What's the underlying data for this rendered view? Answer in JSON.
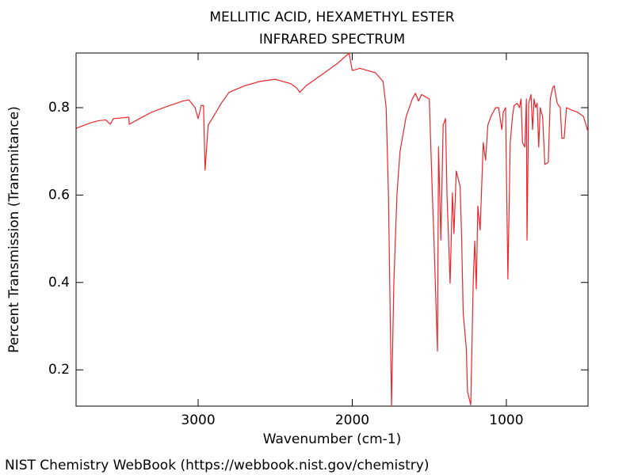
{
  "chart_data": {
    "type": "line",
    "title": "MELLITIC ACID, HEXAMETHYL ESTER",
    "subtitle": "INFRARED SPECTRUM",
    "x_label": "Wavenumber (cm-1)",
    "y_label": "Percent Transmission (Transmitance)",
    "color": "#e8262b",
    "xlim": [
      3792,
      470
    ],
    "xticks": [
      3000,
      2000,
      1000
    ],
    "ylim": [
      0.117,
      0.925
    ],
    "yticks": [
      0.2,
      0.4,
      0.6,
      0.8
    ],
    "x": [
      3790,
      3700,
      3650,
      3600,
      3570,
      3550,
      3450,
      3447,
      3380,
      3300,
      3200,
      3100,
      3060,
      3020,
      3000,
      2980,
      2965,
      2955,
      2935,
      2900,
      2850,
      2800,
      2700,
      2600,
      2500,
      2400,
      2360,
      2340,
      2300,
      2200,
      2100,
      2020,
      2000,
      1950,
      1900,
      1850,
      1800,
      1780,
      1765,
      1745,
      1730,
      1710,
      1690,
      1650,
      1610,
      1590,
      1570,
      1550,
      1500,
      1480,
      1470,
      1447,
      1440,
      1425,
      1410,
      1395,
      1385,
      1365,
      1350,
      1340,
      1325,
      1300,
      1290,
      1280,
      1260,
      1252,
      1231,
      1215,
      1205,
      1195,
      1185,
      1170,
      1150,
      1135,
      1120,
      1100,
      1070,
      1050,
      1030,
      1020,
      1005,
      990,
      975,
      960,
      950,
      930,
      915,
      905,
      895,
      880,
      870,
      866,
      855,
      840,
      830,
      820,
      810,
      800,
      790,
      780,
      765,
      750,
      728,
      715,
      700,
      690,
      670,
      650,
      640,
      625,
      610,
      580,
      540,
      500,
      470
    ],
    "values": [
      0.753,
      0.765,
      0.77,
      0.772,
      0.762,
      0.775,
      0.778,
      0.762,
      0.775,
      0.79,
      0.803,
      0.815,
      0.818,
      0.8,
      0.775,
      0.805,
      0.805,
      0.657,
      0.76,
      0.78,
      0.81,
      0.835,
      0.85,
      0.86,
      0.865,
      0.855,
      0.845,
      0.835,
      0.85,
      0.875,
      0.9,
      0.925,
      0.885,
      0.89,
      0.885,
      0.88,
      0.86,
      0.8,
      0.6,
      0.117,
      0.4,
      0.6,
      0.7,
      0.78,
      0.82,
      0.833,
      0.815,
      0.83,
      0.82,
      0.6,
      0.5,
      0.243,
      0.71,
      0.497,
      0.76,
      0.775,
      0.6,
      0.398,
      0.605,
      0.512,
      0.655,
      0.62,
      0.5,
      0.33,
      0.25,
      0.15,
      0.12,
      0.4,
      0.495,
      0.385,
      0.575,
      0.52,
      0.72,
      0.68,
      0.76,
      0.78,
      0.8,
      0.8,
      0.75,
      0.79,
      0.8,
      0.408,
      0.72,
      0.78,
      0.805,
      0.81,
      0.8,
      0.82,
      0.72,
      0.71,
      0.82,
      0.497,
      0.81,
      0.83,
      0.75,
      0.82,
      0.8,
      0.81,
      0.71,
      0.8,
      0.78,
      0.67,
      0.675,
      0.82,
      0.845,
      0.85,
      0.81,
      0.8,
      0.73,
      0.73,
      0.8,
      0.795,
      0.79,
      0.78,
      0.745
    ]
  },
  "footer": "NIST Chemistry WebBook (https://webbook.nist.gov/chemistry)"
}
